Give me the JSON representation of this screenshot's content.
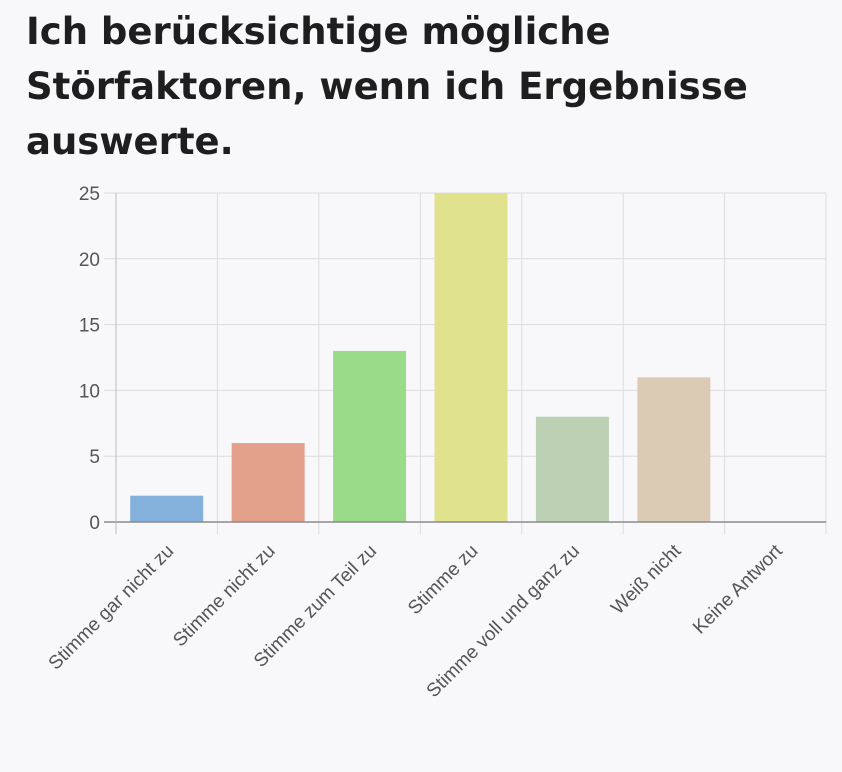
{
  "title": "Ich berücksichtige mögliche Störfaktoren, wenn ich Ergebnisse auswerte.",
  "chart_data": {
    "type": "bar",
    "title": "Ich berücksichtige mögliche Störfaktoren, wenn ich Ergebnisse auswerte.",
    "categories": [
      "Stimme gar nicht zu",
      "Stimme nicht zu",
      "Stimme zum Teil zu",
      "Stimme zu",
      "Stimme voll und ganz zu",
      "Weiß nicht",
      "Keine Antwort"
    ],
    "values": [
      2,
      6,
      13,
      25,
      8,
      11,
      0
    ],
    "colors": [
      "#84b0dc",
      "#e3a08a",
      "#9adb8a",
      "#e1e28e",
      "#bcd0b4",
      "#dccbb4",
      "#cccccc"
    ],
    "yticks": [
      0,
      5,
      10,
      15,
      20,
      25
    ],
    "ylim": [
      0,
      25
    ],
    "grid": true,
    "legend": "none",
    "xlabel": "",
    "ylabel": ""
  }
}
